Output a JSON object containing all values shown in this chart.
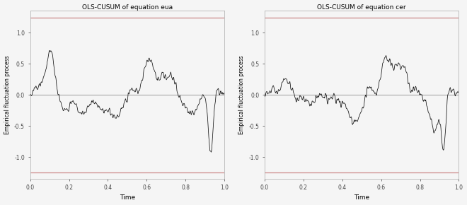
{
  "title_eua": "OLS-CUSUM of equation eua",
  "title_cer": "OLS-CUSUM of equation cer",
  "xlabel": "Time",
  "ylabel": "Empirical fluctuation process",
  "xlim": [
    0.0,
    1.0
  ],
  "ylim": [
    -1.35,
    1.35
  ],
  "yticks": [
    -1.0,
    -0.5,
    0.0,
    0.5,
    1.0
  ],
  "xticks": [
    0.0,
    0.2,
    0.4,
    0.6,
    0.8,
    1.0
  ],
  "boundary": 1.24,
  "boundary_color": "#cc8888",
  "line_color": "#111111",
  "zero_line_color": "#999999",
  "background_color": "#f5f5f5",
  "n_points": 500
}
